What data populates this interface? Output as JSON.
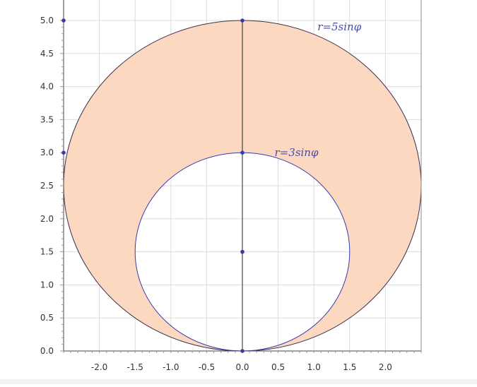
{
  "chart_data": {
    "type": "polar-region",
    "curves": [
      {
        "name": "r=5sinφ",
        "center": [
          0,
          2.5
        ],
        "radius": 2.5,
        "label_at": [
          1.05,
          4.85
        ]
      },
      {
        "name": "r=3sinφ",
        "center": [
          0,
          1.5
        ],
        "radius": 1.5,
        "label_at": [
          0.45,
          2.95
        ]
      }
    ],
    "shaded_region": "between r=3sinφ and r=5sinφ",
    "points": [
      [
        0,
        5
      ],
      [
        0,
        3
      ],
      [
        0,
        1.5
      ],
      [
        0,
        0
      ],
      [
        -2.5,
        5
      ],
      [
        -2.5,
        3
      ]
    ],
    "xlim": [
      -2.5,
      2.5
    ],
    "ylim": [
      0,
      5.0
    ],
    "x_ticks": [
      "-2.0",
      "-1.5",
      "-1.0",
      "-0.5",
      "0.0",
      "0.5",
      "1.0",
      "1.5",
      "2.0"
    ],
    "y_ticks": [
      "0.0",
      "0.5",
      "1.0",
      "1.5",
      "2.0",
      "2.5",
      "3.0",
      "3.5",
      "4.0",
      "4.5",
      "5.0"
    ],
    "grid": true,
    "colors": {
      "fill": "#fcd8c0",
      "outer_curve": "#3a3050",
      "inner_curve": "#3a3ab0",
      "points": "#3a3aa0",
      "grid": "#dddddd"
    }
  }
}
